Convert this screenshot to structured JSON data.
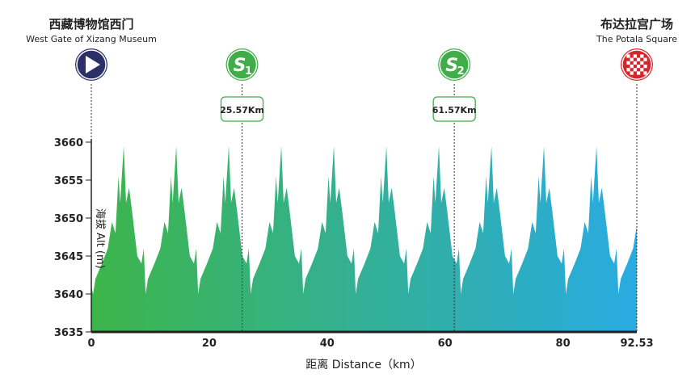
{
  "chart_data": {
    "type": "area",
    "title": "",
    "xlabel": "距离 Distance（km）",
    "ylabel": "海拔 Alt (m)",
    "xlim": [
      0,
      92.53
    ],
    "ylim": [
      3635,
      3660
    ],
    "x_ticks": [
      "0",
      "20",
      "40",
      "60",
      "80",
      "92.53"
    ],
    "x_tick_values": [
      0,
      20,
      40,
      60,
      80,
      92.53
    ],
    "y_ticks": [
      "3660",
      "3655",
      "3650",
      "3645",
      "3640",
      "3635"
    ],
    "y_tick_values": [
      3660,
      3655,
      3650,
      3645,
      3640,
      3635
    ],
    "grid": false,
    "colors": {
      "start": "#3db54a",
      "end": "#29abe2"
    },
    "x": [
      0,
      0.3,
      0.7,
      1.8,
      2.8,
      3.5,
      4.1,
      4.6,
      4.9,
      5.5,
      5.9,
      6.4,
      6.9,
      7.8,
      8.5,
      8.9,
      9.21,
      9.61,
      10.71,
      11.71,
      12.41,
      13.01,
      13.51,
      13.81,
      14.41,
      14.81,
      15.31,
      15.81,
      16.71,
      17.41,
      17.81,
      18.12,
      18.52,
      19.62,
      20.62,
      21.32,
      21.92,
      22.42,
      22.72,
      23.32,
      23.72,
      24.22,
      24.72,
      25.62,
      26.32,
      26.72,
      27.03,
      27.43,
      28.53,
      29.53,
      30.23,
      30.83,
      31.33,
      31.63,
      32.23,
      32.63,
      33.13,
      33.63,
      34.53,
      35.23,
      35.63,
      35.94,
      36.34,
      37.44,
      38.44,
      39.14,
      39.74,
      40.24,
      40.54,
      41.14,
      41.54,
      42.04,
      42.54,
      43.44,
      44.14,
      44.54,
      44.85,
      45.25,
      46.35,
      47.35,
      48.05,
      48.65,
      49.15,
      49.45,
      50.05,
      50.45,
      50.95,
      51.45,
      52.35,
      53.05,
      53.45,
      53.76,
      54.16,
      55.26,
      56.26,
      56.96,
      57.56,
      58.06,
      58.36,
      58.96,
      59.36,
      59.86,
      60.36,
      61.26,
      61.96,
      62.36,
      62.67,
      63.07,
      64.17,
      65.17,
      65.87,
      66.47,
      66.97,
      67.27,
      67.87,
      68.27,
      68.77,
      69.27,
      70.17,
      70.87,
      71.27,
      71.58,
      71.98,
      73.08,
      74.08,
      74.78,
      75.38,
      75.88,
      76.18,
      76.78,
      77.18,
      77.68,
      78.18,
      79.08,
      79.78,
      80.18,
      80.49,
      80.89,
      81.99,
      82.99,
      83.69,
      84.29,
      84.79,
      85.09,
      85.69,
      86.09,
      86.59,
      87.09,
      87.99,
      88.69,
      89.09,
      89.4,
      89.8,
      90.9,
      91.9,
      92.53
    ],
    "y": [
      3641,
      3640,
      3642,
      3644,
      3646,
      3649.5,
      3648,
      3655.5,
      3652,
      3659.5,
      3652,
      3654,
      3651,
      3645,
      3644,
      3646,
      3640,
      3642,
      3644,
      3646,
      3649.5,
      3648,
      3655.5,
      3652,
      3659.5,
      3652,
      3654,
      3651,
      3645,
      3644,
      3646,
      3640,
      3642,
      3644,
      3646,
      3649.5,
      3648,
      3655.5,
      3652,
      3659.5,
      3652,
      3654,
      3651,
      3645,
      3644,
      3646,
      3640,
      3642,
      3644,
      3646,
      3649.5,
      3648,
      3655.5,
      3652,
      3659.5,
      3652,
      3654,
      3651,
      3645,
      3644,
      3646,
      3640,
      3642,
      3644,
      3646,
      3649.5,
      3648,
      3655.5,
      3652,
      3659.5,
      3652,
      3654,
      3651,
      3645,
      3644,
      3646,
      3640,
      3642,
      3644,
      3646,
      3649.5,
      3648,
      3655.5,
      3652,
      3659.5,
      3652,
      3654,
      3651,
      3645,
      3644,
      3646,
      3640,
      3642,
      3644,
      3646,
      3649.5,
      3648,
      3655.5,
      3652,
      3659.5,
      3652,
      3654,
      3651,
      3645,
      3644,
      3646,
      3640,
      3642,
      3644,
      3646,
      3649.5,
      3648,
      3655.5,
      3652,
      3659.5,
      3652,
      3654,
      3651,
      3645,
      3644,
      3646,
      3640,
      3642,
      3644,
      3646,
      3649.5,
      3648,
      3655.5,
      3652,
      3659.5,
      3652,
      3654,
      3651,
      3645,
      3644,
      3646,
      3640,
      3642,
      3644,
      3646,
      3649.5,
      3648,
      3655.5,
      3652,
      3659.5,
      3652,
      3654,
      3651,
      3645,
      3644,
      3646,
      3640,
      3642,
      3644,
      3646,
      3649
    ]
  },
  "markers": [
    {
      "id": "start",
      "km": 0,
      "icon": "play-icon",
      "color": "#2b3168",
      "name_cn": "西藏博物馆西门",
      "name_en": "West Gate of Xizang Museum"
    },
    {
      "id": "s1",
      "km": 25.57,
      "icon": "sprint-1-icon",
      "color": "#3fae49",
      "badge": "S",
      "sub": "1",
      "km_label": "25.57Km"
    },
    {
      "id": "s2",
      "km": 61.57,
      "icon": "sprint-2-icon",
      "color": "#3fae49",
      "badge": "S",
      "sub": "2",
      "km_label": "61.57Km"
    },
    {
      "id": "finish",
      "km": 92.53,
      "icon": "checkered-flag-icon",
      "color": "#d7262b",
      "name_cn": "布达拉宫广场",
      "name_en": "The Potala Square"
    }
  ]
}
